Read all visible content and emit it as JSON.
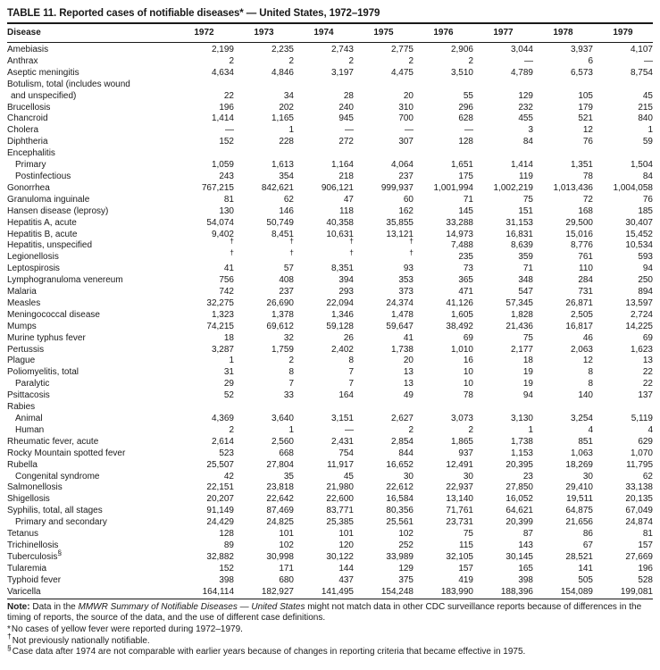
{
  "title": "TABLE 11. Reported cases of notifiable diseases* — United States, 1972–1979",
  "table": {
    "columns": [
      "Disease",
      "1972",
      "1973",
      "1974",
      "1975",
      "1976",
      "1977",
      "1978",
      "1979"
    ],
    "rows": [
      {
        "label": "Amebiasis",
        "indent": 0,
        "values": [
          "2,199",
          "2,235",
          "2,743",
          "2,775",
          "2,906",
          "3,044",
          "3,937",
          "4,107"
        ]
      },
      {
        "label": "Anthrax",
        "indent": 0,
        "values": [
          "2",
          "2",
          "2",
          "2",
          "2",
          "—",
          "6",
          "—"
        ]
      },
      {
        "label": "Aseptic meningitis",
        "indent": 0,
        "values": [
          "4,634",
          "4,846",
          "3,197",
          "4,475",
          "3,510",
          "4,789",
          "6,573",
          "8,754"
        ]
      },
      {
        "label": "Botulism, total (includes wound",
        "indent": 0,
        "values": []
      },
      {
        "label": "and unspecified)",
        "indent": 1,
        "values": [
          "22",
          "34",
          "28",
          "20",
          "55",
          "129",
          "105",
          "45"
        ]
      },
      {
        "label": "Brucellosis",
        "indent": 0,
        "values": [
          "196",
          "202",
          "240",
          "310",
          "296",
          "232",
          "179",
          "215"
        ]
      },
      {
        "label": "Chancroid",
        "indent": 0,
        "values": [
          "1,414",
          "1,165",
          "945",
          "700",
          "628",
          "455",
          "521",
          "840"
        ]
      },
      {
        "label": "Cholera",
        "indent": 0,
        "values": [
          "—",
          "1",
          "—",
          "—",
          "—",
          "3",
          "12",
          "1"
        ]
      },
      {
        "label": "Diphtheria",
        "indent": 0,
        "values": [
          "152",
          "228",
          "272",
          "307",
          "128",
          "84",
          "76",
          "59"
        ]
      },
      {
        "label": "Encephalitis",
        "indent": 0,
        "values": []
      },
      {
        "label": "Primary",
        "indent": 2,
        "values": [
          "1,059",
          "1,613",
          "1,164",
          "4,064",
          "1,651",
          "1,414",
          "1,351",
          "1,504"
        ]
      },
      {
        "label": "Postinfectious",
        "indent": 2,
        "values": [
          "243",
          "354",
          "218",
          "237",
          "175",
          "119",
          "78",
          "84"
        ]
      },
      {
        "label": "Gonorrhea",
        "indent": 0,
        "values": [
          "767,215",
          "842,621",
          "906,121",
          "999,937",
          "1,001,994",
          "1,002,219",
          "1,013,436",
          "1,004,058"
        ]
      },
      {
        "label": "Granuloma inguinale",
        "indent": 0,
        "values": [
          "81",
          "62",
          "47",
          "60",
          "71",
          "75",
          "72",
          "76"
        ]
      },
      {
        "label": "Hansen disease (leprosy)",
        "indent": 0,
        "values": [
          "130",
          "146",
          "118",
          "162",
          "145",
          "151",
          "168",
          "185"
        ]
      },
      {
        "label": "Hepatitis A, acute",
        "indent": 0,
        "values": [
          "54,074",
          "50,749",
          "40,358",
          "35,855",
          "33,288",
          "31,153",
          "29,500",
          "30,407"
        ]
      },
      {
        "label": "Hepatitis B, acute",
        "indent": 0,
        "values": [
          "9,402",
          "8,451",
          "10,631",
          "13,121",
          "14,973",
          "16,831",
          "15,016",
          "15,452"
        ]
      },
      {
        "label": "Hepatitis, unspecified",
        "indent": 0,
        "values": [
          "†",
          "†",
          "†",
          "†",
          "7,488",
          "8,639",
          "8,776",
          "10,534"
        ]
      },
      {
        "label": "Legionellosis",
        "indent": 0,
        "values": [
          "†",
          "†",
          "†",
          "†",
          "235",
          "359",
          "761",
          "593"
        ]
      },
      {
        "label": "Leptospirosis",
        "indent": 0,
        "values": [
          "41",
          "57",
          "8,351",
          "93",
          "73",
          "71",
          "110",
          "94"
        ]
      },
      {
        "label": "Lymphogranuloma venereum",
        "indent": 0,
        "values": [
          "756",
          "408",
          "394",
          "353",
          "365",
          "348",
          "284",
          "250"
        ]
      },
      {
        "label": "Malaria",
        "indent": 0,
        "values": [
          "742",
          "237",
          "293",
          "373",
          "471",
          "547",
          "731",
          "894"
        ]
      },
      {
        "label": "Measles",
        "indent": 0,
        "values": [
          "32,275",
          "26,690",
          "22,094",
          "24,374",
          "41,126",
          "57,345",
          "26,871",
          "13,597"
        ]
      },
      {
        "label": "Meningococcal disease",
        "indent": 0,
        "values": [
          "1,323",
          "1,378",
          "1,346",
          "1,478",
          "1,605",
          "1,828",
          "2,505",
          "2,724"
        ]
      },
      {
        "label": "Mumps",
        "indent": 0,
        "values": [
          "74,215",
          "69,612",
          "59,128",
          "59,647",
          "38,492",
          "21,436",
          "16,817",
          "14,225"
        ]
      },
      {
        "label": "Murine typhus fever",
        "indent": 0,
        "values": [
          "18",
          "32",
          "26",
          "41",
          "69",
          "75",
          "46",
          "69"
        ]
      },
      {
        "label": "Pertussis",
        "indent": 0,
        "values": [
          "3,287",
          "1,759",
          "2,402",
          "1,738",
          "1,010",
          "2,177",
          "2,063",
          "1,623"
        ]
      },
      {
        "label": "Plague",
        "indent": 0,
        "values": [
          "1",
          "2",
          "8",
          "20",
          "16",
          "18",
          "12",
          "13"
        ]
      },
      {
        "label": "Poliomyelitis, total",
        "indent": 0,
        "values": [
          "31",
          "8",
          "7",
          "13",
          "10",
          "19",
          "8",
          "22"
        ]
      },
      {
        "label": "Paralytic",
        "indent": 2,
        "values": [
          "29",
          "7",
          "7",
          "13",
          "10",
          "19",
          "8",
          "22"
        ]
      },
      {
        "label": "Psittacosis",
        "indent": 0,
        "values": [
          "52",
          "33",
          "164",
          "49",
          "78",
          "94",
          "140",
          "137"
        ]
      },
      {
        "label": "Rabies",
        "indent": 0,
        "values": []
      },
      {
        "label": "Animal",
        "indent": 2,
        "values": [
          "4,369",
          "3,640",
          "3,151",
          "2,627",
          "3,073",
          "3,130",
          "3,254",
          "5,119"
        ]
      },
      {
        "label": "Human",
        "indent": 2,
        "values": [
          "2",
          "1",
          "—",
          "2",
          "2",
          "1",
          "4",
          "4"
        ]
      },
      {
        "label": "Rheumatic fever, acute",
        "indent": 0,
        "values": [
          "2,614",
          "2,560",
          "2,431",
          "2,854",
          "1,865",
          "1,738",
          "851",
          "629"
        ]
      },
      {
        "label": "Rocky Mountain spotted fever",
        "indent": 0,
        "values": [
          "523",
          "668",
          "754",
          "844",
          "937",
          "1,153",
          "1,063",
          "1,070"
        ]
      },
      {
        "label": "Rubella",
        "indent": 0,
        "values": [
          "25,507",
          "27,804",
          "11,917",
          "16,652",
          "12,491",
          "20,395",
          "18,269",
          "11,795"
        ]
      },
      {
        "label": "Congenital syndrome",
        "indent": 2,
        "values": [
          "42",
          "35",
          "45",
          "30",
          "30",
          "23",
          "30",
          "62"
        ]
      },
      {
        "label": "Salmonellosis",
        "indent": 0,
        "values": [
          "22,151",
          "23,818",
          "21,980",
          "22,612",
          "22,937",
          "27,850",
          "29,410",
          "33,138"
        ]
      },
      {
        "label": "Shigellosis",
        "indent": 0,
        "values": [
          "20,207",
          "22,642",
          "22,600",
          "16,584",
          "13,140",
          "16,052",
          "19,511",
          "20,135"
        ]
      },
      {
        "label": "Syphilis, total, all stages",
        "indent": 0,
        "values": [
          "91,149",
          "87,469",
          "83,771",
          "80,356",
          "71,761",
          "64,621",
          "64,875",
          "67,049"
        ]
      },
      {
        "label": "Primary and secondary",
        "indent": 2,
        "values": [
          "24,429",
          "24,825",
          "25,385",
          "25,561",
          "23,731",
          "20,399",
          "21,656",
          "24,874"
        ]
      },
      {
        "label": "Tetanus",
        "indent": 0,
        "values": [
          "128",
          "101",
          "101",
          "102",
          "75",
          "87",
          "86",
          "81"
        ]
      },
      {
        "label": "Trichinellosis",
        "indent": 0,
        "values": [
          "89",
          "102",
          "120",
          "252",
          "115",
          "143",
          "67",
          "157"
        ]
      },
      {
        "label": "Tuberculosis",
        "sup": "§",
        "indent": 0,
        "values": [
          "32,882",
          "30,998",
          "30,122",
          "33,989",
          "32,105",
          "30,145",
          "28,521",
          "27,669"
        ]
      },
      {
        "label": "Tularemia",
        "indent": 0,
        "values": [
          "152",
          "171",
          "144",
          "129",
          "157",
          "165",
          "141",
          "196"
        ]
      },
      {
        "label": "Typhoid fever",
        "indent": 0,
        "values": [
          "398",
          "680",
          "437",
          "375",
          "419",
          "398",
          "505",
          "528"
        ]
      },
      {
        "label": "Varicella",
        "indent": 0,
        "values": [
          "164,114",
          "182,927",
          "141,495",
          "154,248",
          "183,990",
          "188,396",
          "154,089",
          "199,081"
        ]
      }
    ]
  },
  "note": {
    "label": "Note:",
    "prefix": " Data in the ",
    "italic": "MMWR Summary of Notifiable Diseases — United States",
    "suffix": " might not match data in other CDC surveillance reports because of differences in the timing of reports, the source of the data, and the use of different case definitions."
  },
  "footnotes": [
    {
      "marker": "*",
      "text": "No cases of yellow fever were reported during 1972–1979."
    },
    {
      "marker": "†",
      "text": "Not previously nationally notifiable."
    },
    {
      "marker": "§",
      "text": "Case data after 1974 are not comparable with earlier years because of changes in reporting criteria that became effective in 1975."
    }
  ],
  "colors": {
    "text": "#191919",
    "background": "#ffffff",
    "rule": "#191919"
  }
}
